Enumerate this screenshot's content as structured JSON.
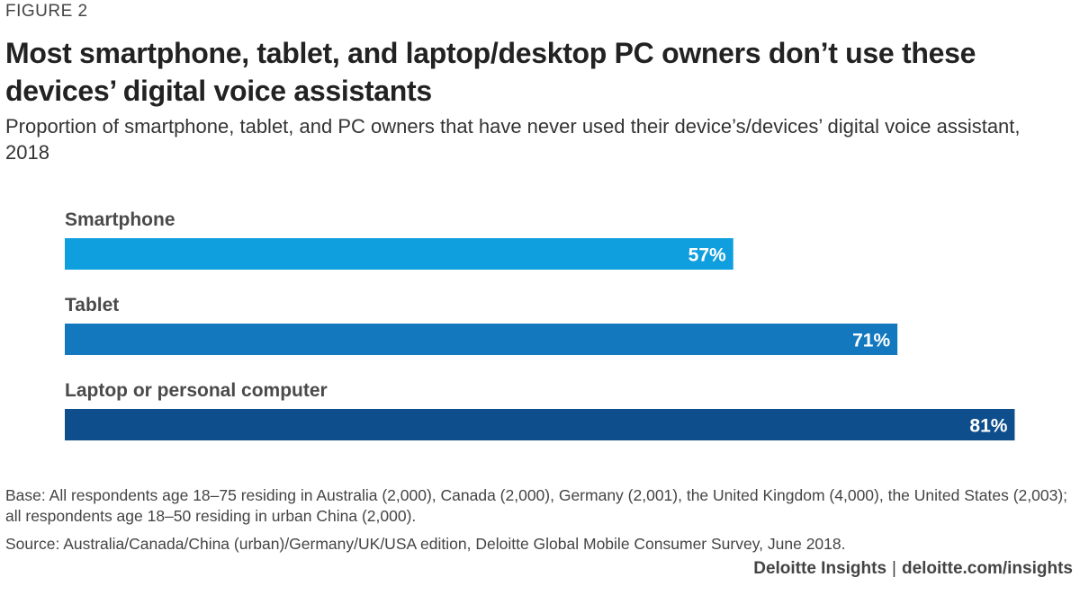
{
  "figure_label": "FIGURE 2",
  "footer": {
    "brand": "Deloitte Insights",
    "separator": "|",
    "url": "deloitte.com/insights"
  },
  "colors": {
    "smartphone": "#0f9fdf",
    "tablet": "#1378be",
    "pc": "#0e4e8c"
  },
  "chart_data": {
    "type": "bar",
    "orientation": "horizontal",
    "title": "Most smartphone, tablet, and laptop/desktop PC owners don’t use these devices’ digital voice assistants",
    "subtitle": "Proportion of smartphone, tablet, and PC owners that have never used their device’s/devices’ digital voice assistant, 2018",
    "categories": [
      "Smartphone",
      "Tablet",
      "Laptop or personal computer"
    ],
    "values": [
      57,
      71,
      81
    ],
    "value_labels": [
      "57%",
      "71%",
      "81%"
    ],
    "xlim": [
      0,
      100
    ],
    "xlabel": "",
    "ylabel": "",
    "grid": false,
    "notes": {
      "base": "Base: All respondents age 18–75 residing in Australia (2,000), Canada (2,000), Germany (2,001), the United Kingdom (4,000), the United States (2,003); all respondents age 18–50 residing in urban China (2,000).",
      "source": "Source: Australia/Canada/China (urban)/Germany/UK/USA edition, Deloitte Global Mobile Consumer Survey, June 2018."
    }
  }
}
